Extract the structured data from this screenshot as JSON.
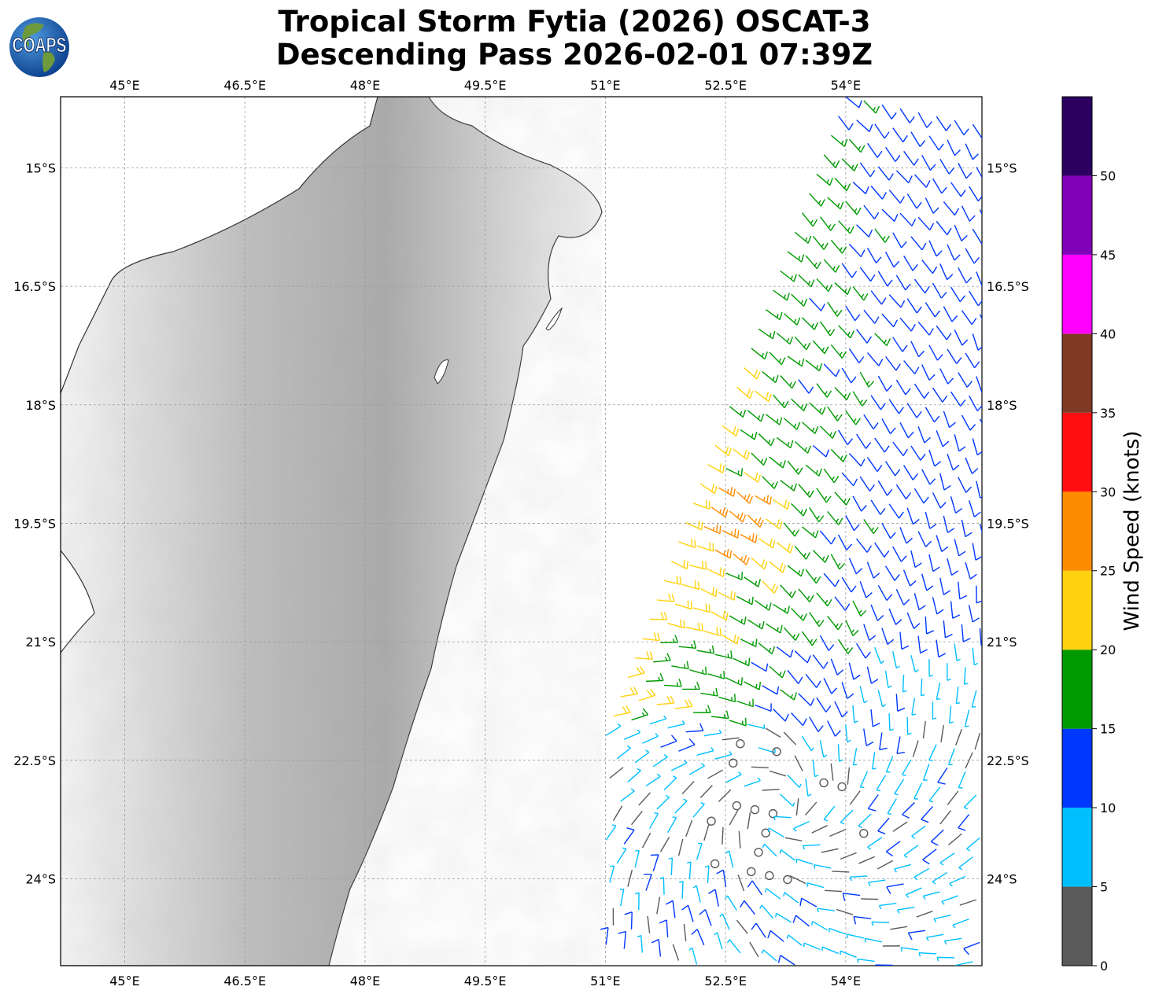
{
  "title_line1": "Tropical Storm Fytia (2026) OSCAT-3",
  "title_line2": "Descending Pass 2026-02-01 07:39Z",
  "logo_text": "COAPS",
  "logo_icon": "globe-icon",
  "map": {
    "lon_range": [
      44.2,
      55.7
    ],
    "lat_range": [
      -25.1,
      -14.1
    ],
    "gridlines": true,
    "lon_ticks": [
      45,
      46.5,
      48,
      49.5,
      51,
      52.5,
      54
    ],
    "lon_tick_labels": [
      "45°E",
      "46.5°E",
      "48°E",
      "49.5°E",
      "51°E",
      "52.5°E",
      "54°E"
    ],
    "lat_ticks": [
      -15,
      -16.5,
      -18,
      -19.5,
      -21,
      -22.5,
      -24
    ],
    "lat_tick_labels": [
      "15°S",
      "16.5°S",
      "18°S",
      "19.5°S",
      "21°S",
      "22.5°S",
      "24°S"
    ],
    "background": "grayscale terrain of Madagascar",
    "storm_circulation_center": {
      "lon": 53.2,
      "lat": -23.1
    }
  },
  "colorbar": {
    "label": "Wind Speed (knots)",
    "ticks": [
      "0",
      "5",
      "10",
      "15",
      "20",
      "25",
      "30",
      "35",
      "40",
      "45",
      "50"
    ],
    "bins": [
      {
        "min": 0,
        "max": 5,
        "color": "#5a5a5a"
      },
      {
        "min": 5,
        "max": 10,
        "color": "#00bfff"
      },
      {
        "min": 10,
        "max": 15,
        "color": "#0037ff"
      },
      {
        "min": 15,
        "max": 20,
        "color": "#009a00"
      },
      {
        "min": 20,
        "max": 25,
        "color": "#ffd20f"
      },
      {
        "min": 25,
        "max": 30,
        "color": "#ff8c00"
      },
      {
        "min": 30,
        "max": 35,
        "color": "#ff0f0f"
      },
      {
        "min": 35,
        "max": 40,
        "color": "#7f3a26"
      },
      {
        "min": 40,
        "max": 45,
        "color": "#ff00ff"
      },
      {
        "min": 45,
        "max": 50,
        "color": "#8000b8"
      },
      {
        "min": 50,
        "max": 55,
        "color": "#2b0060"
      }
    ]
  }
}
